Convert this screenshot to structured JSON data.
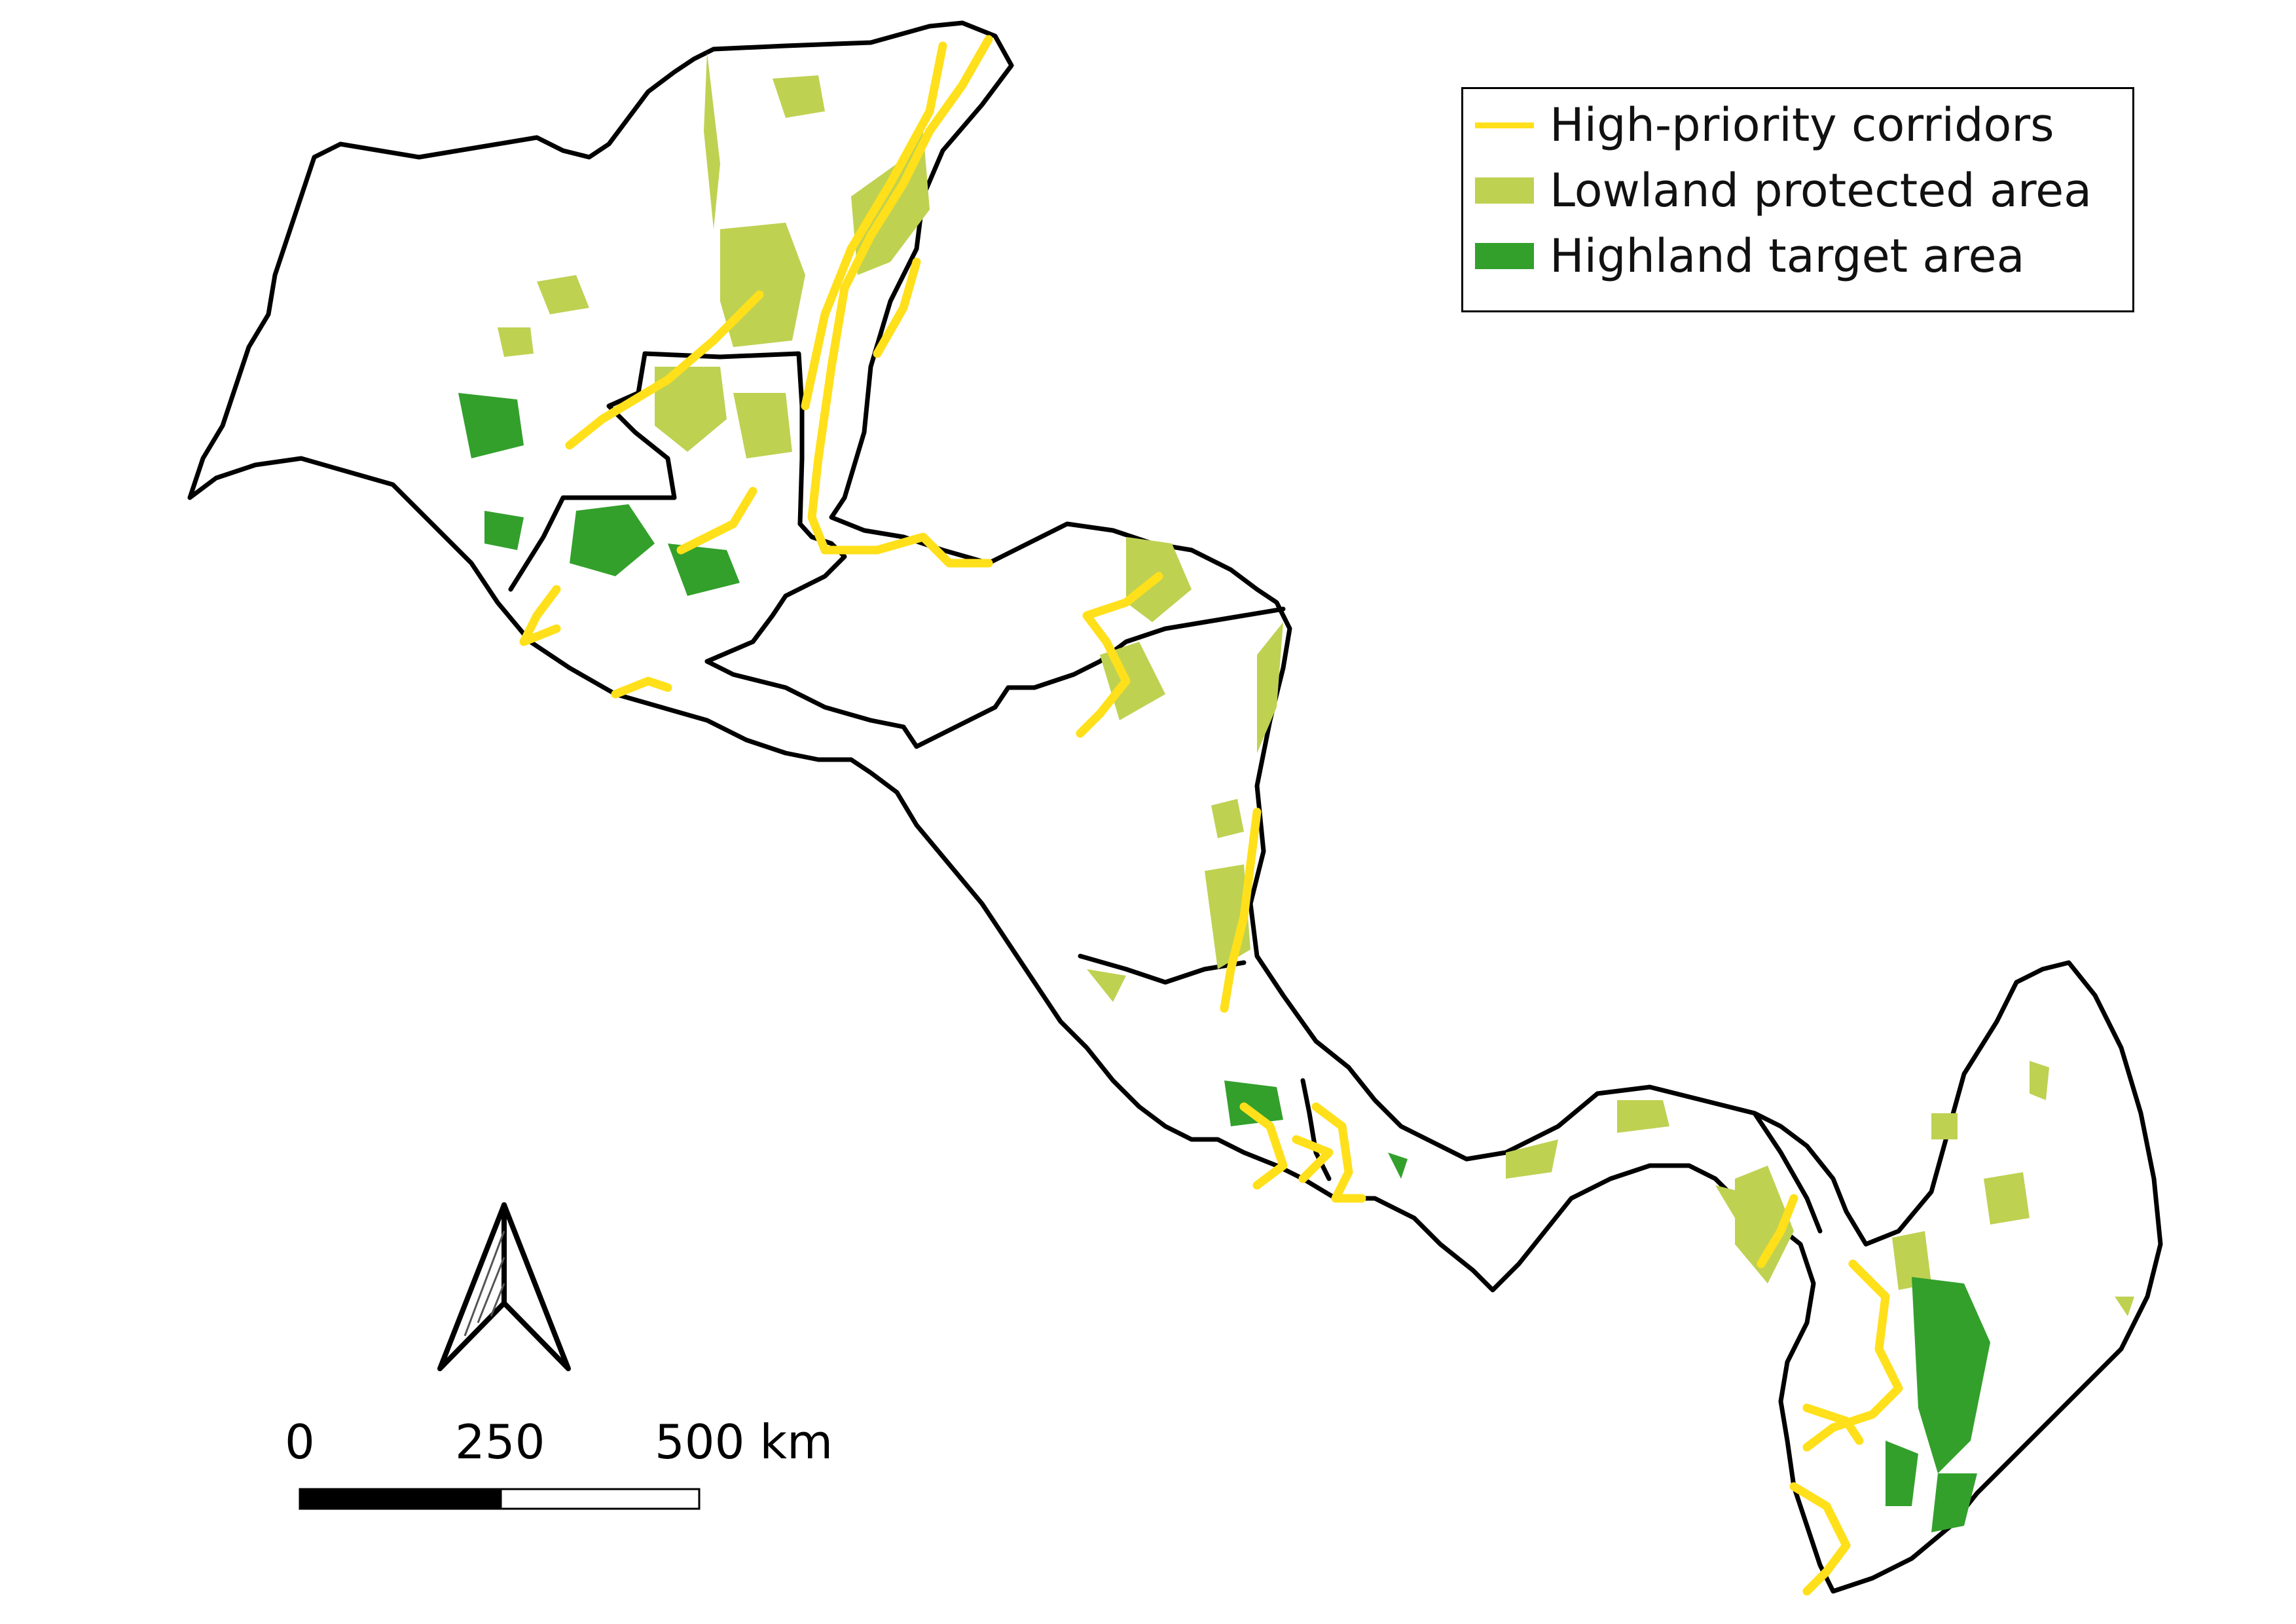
{
  "legend": {
    "items": [
      {
        "label": "High-priority corridors",
        "kind": "line",
        "color": "#ffe01a"
      },
      {
        "label": "Lowland protected area",
        "kind": "fill",
        "color": "#bfd151"
      },
      {
        "label": "Highland target area",
        "kind": "fill",
        "color": "#33a02c"
      }
    ]
  },
  "scale_bar": {
    "ticks": [
      "0",
      "250",
      "500 km"
    ]
  },
  "north_arrow": {
    "icon": "north-arrow-icon"
  },
  "colors": {
    "corridor": "#ffe01a",
    "lowland": "#bfd151",
    "highland": "#33a02c",
    "border": "#000000"
  }
}
